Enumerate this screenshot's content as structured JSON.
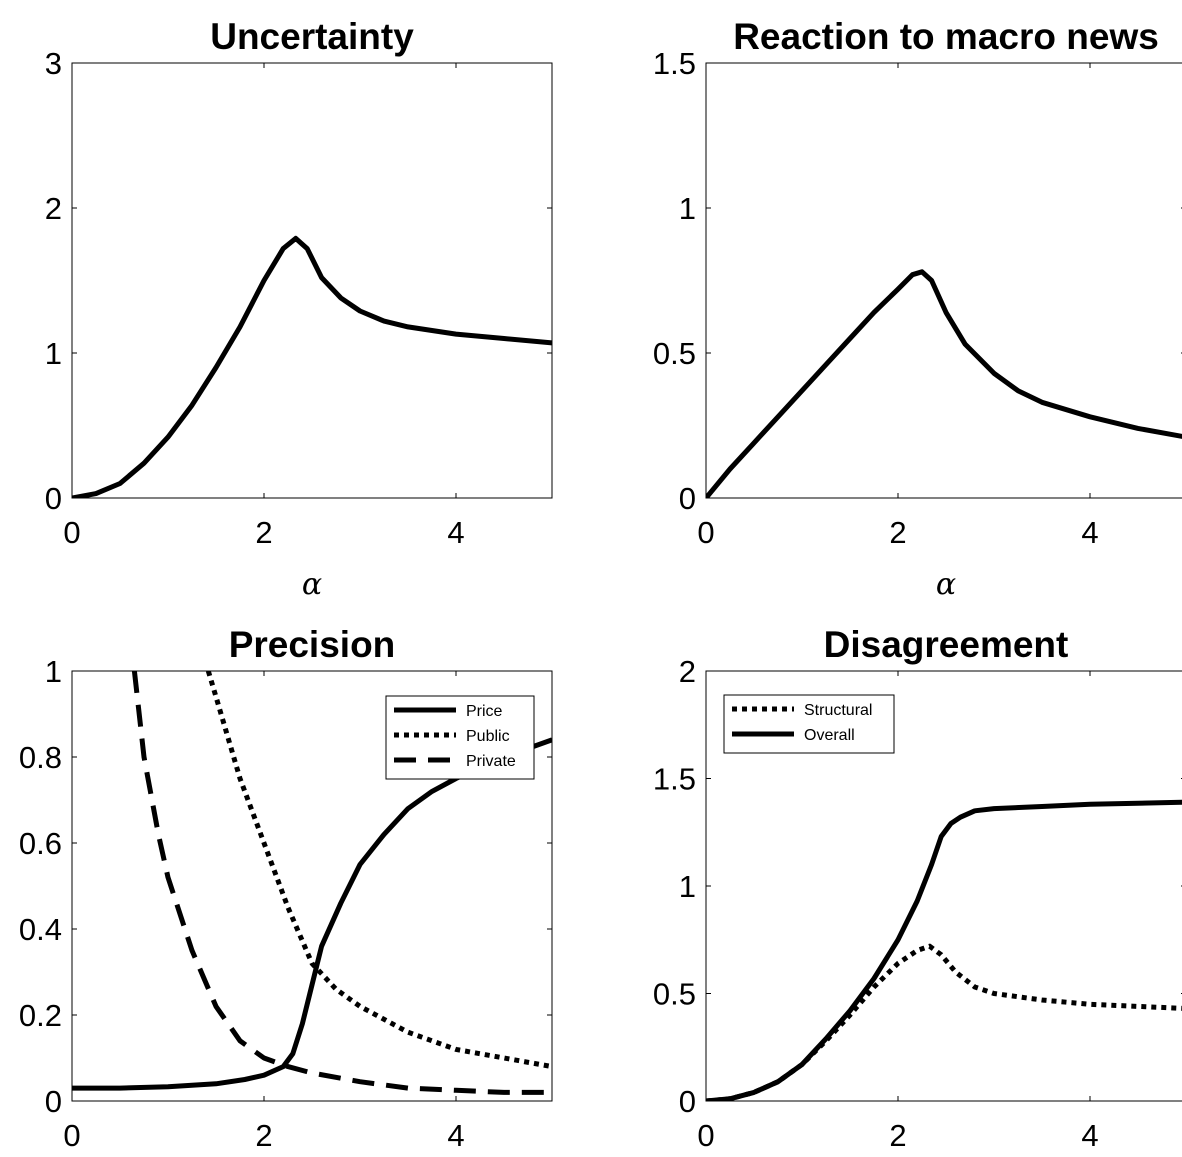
{
  "chart_data": [
    {
      "type": "line",
      "title": "Uncertainty",
      "xlabel": "α",
      "ylabel": "",
      "xlim": [
        0,
        5
      ],
      "ylim": [
        0,
        3
      ],
      "xticks": [
        0,
        2,
        4
      ],
      "yticks": [
        0,
        1,
        2,
        3
      ],
      "grid": false,
      "legend": null,
      "series": [
        {
          "style": "solid",
          "x": [
            0,
            0.25,
            0.5,
            0.75,
            1.0,
            1.25,
            1.5,
            1.75,
            2.0,
            2.2,
            2.33,
            2.45,
            2.6,
            2.8,
            3.0,
            3.25,
            3.5,
            4.0,
            4.5,
            5.0
          ],
          "y": [
            0,
            0.03,
            0.1,
            0.24,
            0.42,
            0.64,
            0.9,
            1.18,
            1.5,
            1.72,
            1.79,
            1.72,
            1.52,
            1.38,
            1.29,
            1.22,
            1.18,
            1.13,
            1.1,
            1.07
          ]
        }
      ]
    },
    {
      "type": "line",
      "title": "Reaction to macro news",
      "xlabel": "α",
      "ylabel": "",
      "xlim": [
        0,
        5
      ],
      "ylim": [
        0,
        1.5
      ],
      "xticks": [
        0,
        2,
        4
      ],
      "yticks": [
        0,
        0.5,
        1,
        1.5
      ],
      "ytick_labels": [
        "0",
        "0.5",
        "1",
        "1.5"
      ],
      "grid": false,
      "legend": null,
      "series": [
        {
          "style": "solid",
          "x": [
            0,
            0.25,
            0.5,
            0.75,
            1.0,
            1.25,
            1.5,
            1.75,
            2.0,
            2.15,
            2.25,
            2.35,
            2.5,
            2.7,
            3.0,
            3.25,
            3.5,
            4.0,
            4.5,
            5.0
          ],
          "y": [
            0,
            0.1,
            0.19,
            0.28,
            0.37,
            0.46,
            0.55,
            0.64,
            0.72,
            0.77,
            0.78,
            0.75,
            0.64,
            0.53,
            0.43,
            0.37,
            0.33,
            0.28,
            0.24,
            0.21
          ]
        }
      ]
    },
    {
      "type": "line",
      "title": "Precision",
      "xlabel": "",
      "ylabel": "",
      "xlim": [
        0,
        5
      ],
      "ylim": [
        0,
        1
      ],
      "xticks": [
        0,
        2,
        4
      ],
      "yticks": [
        0,
        0.2,
        0.4,
        0.6,
        0.8,
        1
      ],
      "ytick_labels": [
        "0",
        "0.2",
        "0.4",
        "0.6",
        "0.8",
        "1"
      ],
      "grid": false,
      "legend": "top-right",
      "series": [
        {
          "name": "Price",
          "style": "solid",
          "x": [
            0,
            0.5,
            1.0,
            1.5,
            1.8,
            2.0,
            2.2,
            2.3,
            2.4,
            2.5,
            2.6,
            2.8,
            3.0,
            3.25,
            3.5,
            3.75,
            4.0,
            4.5,
            5.0
          ],
          "y": [
            0.03,
            0.03,
            0.033,
            0.04,
            0.05,
            0.06,
            0.08,
            0.11,
            0.18,
            0.27,
            0.36,
            0.46,
            0.55,
            0.62,
            0.68,
            0.72,
            0.75,
            0.8,
            0.84
          ]
        },
        {
          "name": "Public",
          "style": "dotted",
          "x": [
            1.42,
            1.5,
            1.75,
            2.0,
            2.25,
            2.5,
            2.75,
            3.0,
            3.5,
            4.0,
            4.5,
            5.0
          ],
          "y": [
            1.0,
            0.94,
            0.75,
            0.6,
            0.45,
            0.32,
            0.26,
            0.22,
            0.16,
            0.12,
            0.1,
            0.08
          ]
        },
        {
          "name": "Private",
          "style": "dashed",
          "x": [
            0.65,
            0.75,
            0.9,
            1.0,
            1.25,
            1.5,
            1.75,
            2.0,
            2.25,
            2.5,
            3.0,
            3.5,
            4.0,
            4.5,
            5.0
          ],
          "y": [
            1.0,
            0.8,
            0.62,
            0.52,
            0.35,
            0.22,
            0.14,
            0.1,
            0.08,
            0.065,
            0.045,
            0.03,
            0.025,
            0.02,
            0.02
          ]
        }
      ]
    },
    {
      "type": "line",
      "title": "Disagreement",
      "xlabel": "",
      "ylabel": "",
      "xlim": [
        0,
        5
      ],
      "ylim": [
        0,
        2
      ],
      "xticks": [
        0,
        2,
        4
      ],
      "yticks": [
        0,
        0.5,
        1,
        1.5,
        2
      ],
      "ytick_labels": [
        "0",
        "0.5",
        "1",
        "1.5",
        "2"
      ],
      "grid": false,
      "legend": "top-left",
      "series": [
        {
          "name": "Structural",
          "style": "dotted",
          "x": [
            0,
            0.25,
            0.5,
            0.75,
            1.0,
            1.25,
            1.5,
            1.75,
            2.0,
            2.2,
            2.33,
            2.45,
            2.6,
            2.8,
            3.0,
            3.5,
            4.0,
            4.5,
            5.0
          ],
          "y": [
            0,
            0.01,
            0.04,
            0.09,
            0.17,
            0.28,
            0.4,
            0.53,
            0.64,
            0.7,
            0.72,
            0.68,
            0.6,
            0.53,
            0.5,
            0.47,
            0.45,
            0.44,
            0.43
          ]
        },
        {
          "name": "Overall",
          "style": "solid",
          "x": [
            0,
            0.25,
            0.5,
            0.75,
            1.0,
            1.25,
            1.5,
            1.75,
            2.0,
            2.2,
            2.35,
            2.45,
            2.55,
            2.65,
            2.8,
            3.0,
            3.5,
            4.0,
            4.5,
            5.0
          ],
          "y": [
            0,
            0.01,
            0.04,
            0.09,
            0.17,
            0.29,
            0.42,
            0.57,
            0.75,
            0.93,
            1.1,
            1.23,
            1.29,
            1.32,
            1.35,
            1.36,
            1.37,
            1.38,
            1.385,
            1.39
          ]
        }
      ]
    }
  ]
}
